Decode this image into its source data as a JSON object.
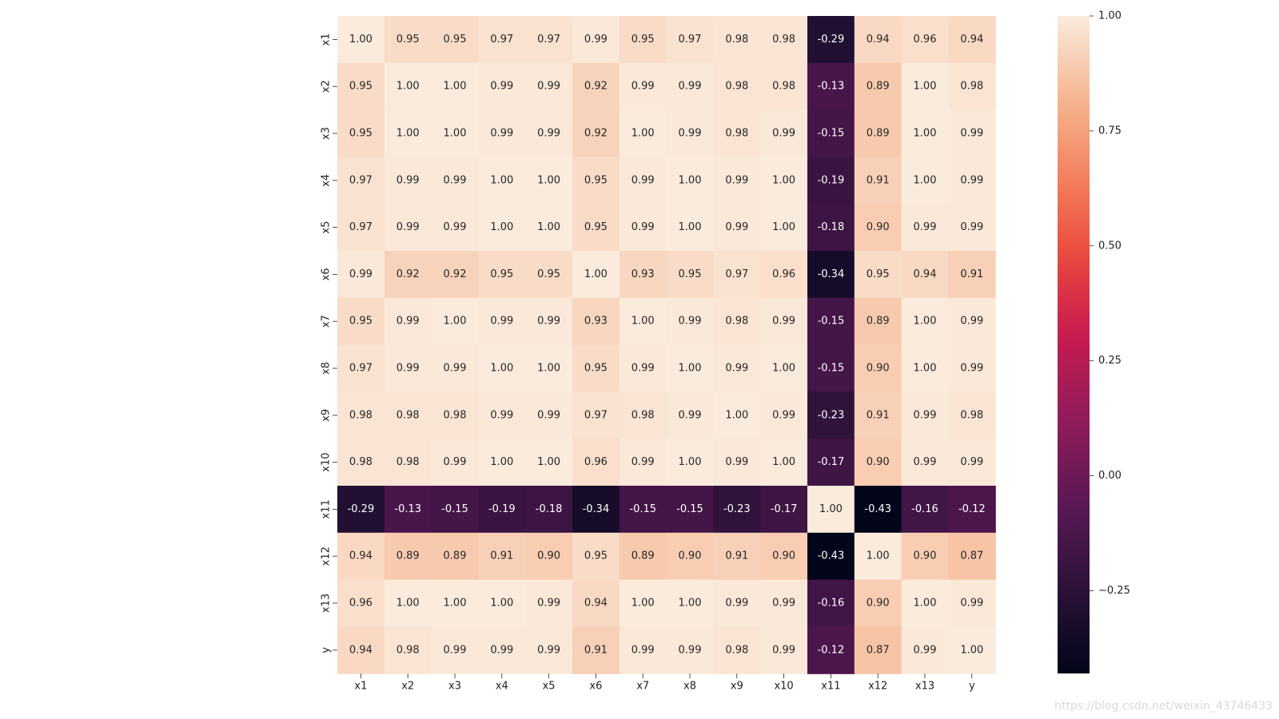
{
  "chart_data": {
    "type": "heatmap",
    "x_labels": [
      "x1",
      "x2",
      "x3",
      "x4",
      "x5",
      "x6",
      "x7",
      "x8",
      "x9",
      "x10",
      "x11",
      "x12",
      "x13",
      "y"
    ],
    "y_labels": [
      "x1",
      "x2",
      "x3",
      "x4",
      "x5",
      "x6",
      "x7",
      "x8",
      "x9",
      "x10",
      "x11",
      "x12",
      "x13",
      "y"
    ],
    "values": [
      [
        1.0,
        0.95,
        0.95,
        0.97,
        0.97,
        0.99,
        0.95,
        0.97,
        0.98,
        0.98,
        -0.29,
        0.94,
        0.96,
        0.94
      ],
      [
        0.95,
        1.0,
        1.0,
        0.99,
        0.99,
        0.92,
        0.99,
        0.99,
        0.98,
        0.98,
        -0.13,
        0.89,
        1.0,
        0.98
      ],
      [
        0.95,
        1.0,
        1.0,
        0.99,
        0.99,
        0.92,
        1.0,
        0.99,
        0.98,
        0.99,
        -0.15,
        0.89,
        1.0,
        0.99
      ],
      [
        0.97,
        0.99,
        0.99,
        1.0,
        1.0,
        0.95,
        0.99,
        1.0,
        0.99,
        1.0,
        -0.19,
        0.91,
        1.0,
        0.99
      ],
      [
        0.97,
        0.99,
        0.99,
        1.0,
        1.0,
        0.95,
        0.99,
        1.0,
        0.99,
        1.0,
        -0.18,
        0.9,
        0.99,
        0.99
      ],
      [
        0.99,
        0.92,
        0.92,
        0.95,
        0.95,
        1.0,
        0.93,
        0.95,
        0.97,
        0.96,
        -0.34,
        0.95,
        0.94,
        0.91
      ],
      [
        0.95,
        0.99,
        1.0,
        0.99,
        0.99,
        0.93,
        1.0,
        0.99,
        0.98,
        0.99,
        -0.15,
        0.89,
        1.0,
        0.99
      ],
      [
        0.97,
        0.99,
        0.99,
        1.0,
        1.0,
        0.95,
        0.99,
        1.0,
        0.99,
        1.0,
        -0.15,
        0.9,
        1.0,
        0.99
      ],
      [
        0.98,
        0.98,
        0.98,
        0.99,
        0.99,
        0.97,
        0.98,
        0.99,
        1.0,
        0.99,
        -0.23,
        0.91,
        0.99,
        0.98
      ],
      [
        0.98,
        0.98,
        0.99,
        1.0,
        1.0,
        0.96,
        0.99,
        1.0,
        0.99,
        1.0,
        -0.17,
        0.9,
        0.99,
        0.99
      ],
      [
        -0.29,
        -0.13,
        -0.15,
        -0.19,
        -0.18,
        -0.34,
        -0.15,
        -0.15,
        -0.23,
        -0.17,
        1.0,
        -0.43,
        -0.16,
        -0.12
      ],
      [
        0.94,
        0.89,
        0.89,
        0.91,
        0.9,
        0.95,
        0.89,
        0.9,
        0.91,
        0.9,
        -0.43,
        1.0,
        0.9,
        0.87
      ],
      [
        0.96,
        1.0,
        1.0,
        1.0,
        0.99,
        0.94,
        1.0,
        1.0,
        0.99,
        0.99,
        -0.16,
        0.9,
        1.0,
        0.99
      ],
      [
        0.94,
        0.98,
        0.99,
        0.99,
        0.99,
        0.91,
        0.99,
        0.99,
        0.98,
        0.99,
        -0.12,
        0.87,
        0.99,
        1.0
      ]
    ],
    "value_format": "0.00",
    "color_range": [
      -0.43,
      1.0
    ],
    "colormap": "rocket",
    "colorbar": {
      "ticks": [
        1.0,
        0.75,
        0.5,
        0.25,
        0.0,
        -0.25
      ],
      "tick_labels": [
        "1.00",
        "0.75",
        "0.50",
        "0.25",
        "0.00",
        "−0.25"
      ]
    },
    "title": "",
    "xlabel": "",
    "ylabel": ""
  },
  "watermark": "https://blog.csdn.net/weixin_43746433"
}
